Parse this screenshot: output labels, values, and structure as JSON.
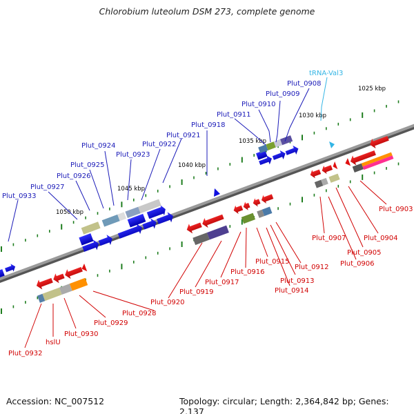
{
  "title": "Chlorobium luteolum DSM 273, complete genome",
  "accession": "Accession: NC_007512",
  "summary": "Topology: circular; Length: 2,364,842 bp; Genes: 2,137",
  "scale_labels": [
    "1025 kbp",
    "1030 kbp",
    "1035 kbp",
    "1040 kbp",
    "1045 kbp",
    "1050 kbp"
  ],
  "upper_labels": [
    "Plut_0908",
    "Plut_0909",
    "Plut_0910",
    "Plut_0911",
    "Plut_0918",
    "Plut_0921",
    "Plut_0922",
    "Plut_0923",
    "Plut_0924",
    "Plut_0925",
    "Plut_0926",
    "Plut_0927",
    "Plut_0933"
  ],
  "trna_label": "tRNA-Val3",
  "lower_labels": [
    "Plut_0903",
    "Plut_0904",
    "Plut_0905",
    "Plut_0906",
    "Plut_0907",
    "Plut_0912",
    "Plut_0913",
    "Plut_0914",
    "Plut_0915",
    "Plut_0916",
    "Plut_0917",
    "Plut_0919",
    "Plut_0920",
    "Plut_0928",
    "Plut_0929",
    "Plut_0930",
    "hslU",
    "Plut_0932"
  ],
  "colors": {
    "forward": "#1010e0",
    "reverse": "#e01010",
    "backbone": "#808080",
    "tick": "#1e7d1e",
    "trna": "#33b5e5"
  }
}
